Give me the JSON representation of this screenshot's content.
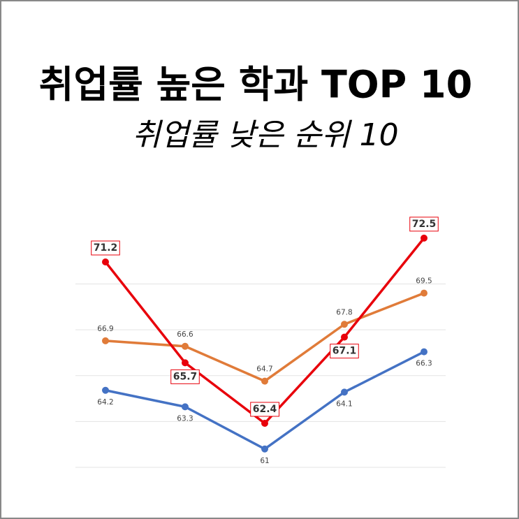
{
  "chart_data": {
    "type": "line",
    "title": "취업률 높은 학과 TOP 10",
    "subtitle": "취업률 낮은 순위 10",
    "categories": [
      null,
      null,
      null,
      null,
      null
    ],
    "series": [
      {
        "color": "#4472c4",
        "values": [
          64.2,
          63.3,
          61,
          64.1,
          66.3
        ]
      },
      {
        "color": "#e07b39",
        "values": [
          66.9,
          66.6,
          64.7,
          67.8,
          69.5
        ]
      },
      {
        "color": "#e8000b",
        "values": [
          71.2,
          65.7,
          62.4,
          67.1,
          72.5
        ]
      }
    ],
    "ylim": [
      60,
      73.2
    ],
    "yticks": [
      60,
      62.5,
      65,
      67.5,
      70
    ],
    "grid": true
  }
}
